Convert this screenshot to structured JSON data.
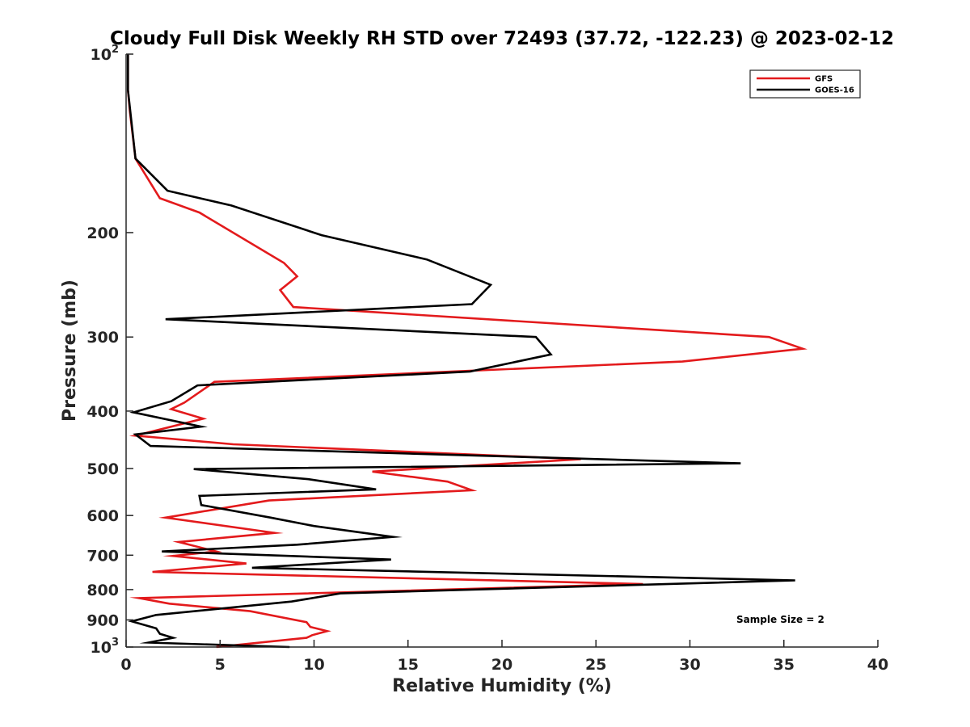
{
  "chart_data": {
    "type": "line",
    "title": "Cloudy Full Disk Weekly RH STD over 72493 (37.72, -122.23) @ 2023-02-12",
    "xlabel": "Relative Humidity (%)",
    "ylabel": "Pressure (mb)",
    "xlim": [
      0,
      40
    ],
    "ylim": [
      100,
      1000
    ],
    "yscale": "log",
    "y_reversed": true,
    "grid": false,
    "legend_position": "top-right",
    "x_ticks": [
      0,
      5,
      10,
      15,
      20,
      25,
      30,
      35,
      40
    ],
    "y_ticks": [
      {
        "value": 100,
        "base": "10",
        "exp": "2"
      },
      {
        "value": 200,
        "label": "200"
      },
      {
        "value": 300,
        "label": "300"
      },
      {
        "value": 400,
        "label": "400"
      },
      {
        "value": 500,
        "label": "500"
      },
      {
        "value": 600,
        "label": "600"
      },
      {
        "value": 700,
        "label": "700"
      },
      {
        "value": 800,
        "label": "800"
      },
      {
        "value": 900,
        "label": "900"
      },
      {
        "value": 1000,
        "base": "10",
        "exp": "3"
      }
    ],
    "annotation": "Sample Size = 2",
    "series": [
      {
        "name": "GFS",
        "color": "#e31a1c",
        "points": [
          [
            0.1,
            100
          ],
          [
            0.1,
            115
          ],
          [
            0.2,
            125
          ],
          [
            0.5,
            150
          ],
          [
            1.8,
            175
          ],
          [
            3.9,
            185
          ],
          [
            8.4,
            225
          ],
          [
            9.1,
            237
          ],
          [
            8.2,
            250
          ],
          [
            8.9,
            267
          ],
          [
            34.2,
            300
          ],
          [
            36.0,
            314
          ],
          [
            29.6,
            330
          ],
          [
            4.7,
            357
          ],
          [
            3.1,
            387
          ],
          [
            2.4,
            397
          ],
          [
            4.1,
            412
          ],
          [
            0.5,
            440
          ],
          [
            5.7,
            455
          ],
          [
            24.2,
            482
          ],
          [
            13.1,
            506
          ],
          [
            17.1,
            526
          ],
          [
            18.4,
            544
          ],
          [
            7.6,
            566
          ],
          [
            2.1,
            605
          ],
          [
            7.9,
            642
          ],
          [
            2.8,
            665
          ],
          [
            4.8,
            690
          ],
          [
            2.5,
            702
          ],
          [
            6.4,
            723
          ],
          [
            1.4,
            747
          ],
          [
            27.5,
            783
          ],
          [
            0.7,
            827
          ],
          [
            2.3,
            845
          ],
          [
            6.6,
            870
          ],
          [
            9.6,
            908
          ],
          [
            9.8,
            925
          ],
          [
            10.7,
            940
          ],
          [
            9.9,
            955
          ],
          [
            9.6,
            965
          ],
          [
            4.8,
            1000
          ]
        ]
      },
      {
        "name": "GOES-16",
        "color": "#000000",
        "points": [
          [
            0.1,
            100
          ],
          [
            0.1,
            115
          ],
          [
            0.5,
            150
          ],
          [
            2.2,
            170
          ],
          [
            5.6,
            180
          ],
          [
            10.4,
            202
          ],
          [
            16.0,
            222
          ],
          [
            19.4,
            245
          ],
          [
            18.4,
            264
          ],
          [
            2.1,
            280
          ],
          [
            21.8,
            300
          ],
          [
            22.6,
            321
          ],
          [
            18.3,
            343
          ],
          [
            3.8,
            362
          ],
          [
            2.4,
            385
          ],
          [
            0.4,
            402
          ],
          [
            4.0,
            425
          ],
          [
            0.5,
            438
          ],
          [
            1.3,
            458
          ],
          [
            32.7,
            490
          ],
          [
            3.6,
            501
          ],
          [
            9.7,
            521
          ],
          [
            13.3,
            542
          ],
          [
            3.9,
            556
          ],
          [
            4.0,
            576
          ],
          [
            7.7,
            605
          ],
          [
            10.0,
            625
          ],
          [
            14.2,
            652
          ],
          [
            9.1,
            672
          ],
          [
            1.9,
            690
          ],
          [
            14.1,
            712
          ],
          [
            6.7,
            735
          ],
          [
            35.6,
            772
          ],
          [
            11.4,
            812
          ],
          [
            8.8,
            838
          ],
          [
            1.6,
            883
          ],
          [
            0.3,
            905
          ],
          [
            1.6,
            930
          ],
          [
            1.8,
            950
          ],
          [
            2.5,
            965
          ],
          [
            1.2,
            983
          ],
          [
            8.7,
            1000
          ]
        ]
      }
    ]
  }
}
